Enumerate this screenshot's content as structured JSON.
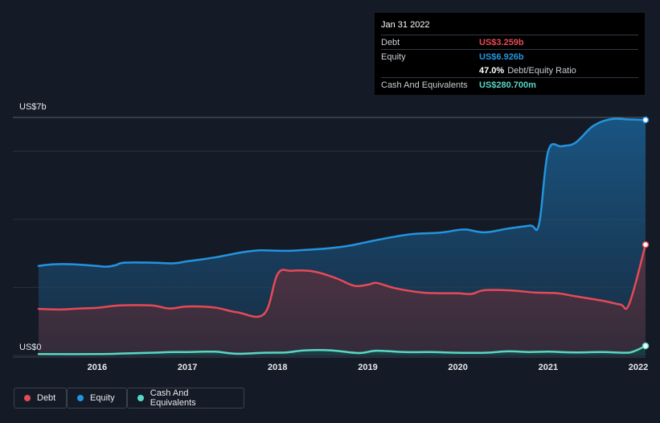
{
  "tooltip": {
    "date": "Jan 31 2022",
    "rows": [
      {
        "label": "Debt",
        "value": "US$3.259b",
        "color": "#e64a57"
      },
      {
        "label": "Equity",
        "value": "US$6.926b",
        "color": "#2394df"
      },
      {
        "label": "Cash And Equivalents",
        "value": "US$280.700m",
        "color": "#59d7c3"
      }
    ],
    "ratio_value": "47.0%",
    "ratio_label": "Debt/Equity Ratio"
  },
  "legend": [
    {
      "label": "Debt",
      "color": "#e64a57"
    },
    {
      "label": "Equity",
      "color": "#2394df"
    },
    {
      "label": "Cash And Equivalents",
      "color": "#59d7c3"
    }
  ],
  "chart_data": {
    "type": "area",
    "title": "",
    "ylabel_top": "US$7b",
    "ylabel_bottom": "US$0",
    "ylim": [
      0,
      7
    ],
    "xlim": [
      2015.35,
      2022.08
    ],
    "x_ticks": [
      2016,
      2017,
      2018,
      2019,
      2020,
      2021,
      2022
    ],
    "x_tick_labels": [
      "2016",
      "2017",
      "2018",
      "2019",
      "2020",
      "2021",
      "2022"
    ],
    "series": [
      {
        "name": "Equity",
        "color": "#2394df",
        "points": [
          [
            2015.35,
            2.63
          ],
          [
            2015.5,
            2.68
          ],
          [
            2015.75,
            2.68
          ],
          [
            2016.0,
            2.63
          ],
          [
            2016.1,
            2.61
          ],
          [
            2016.2,
            2.65
          ],
          [
            2016.3,
            2.73
          ],
          [
            2016.6,
            2.73
          ],
          [
            2016.85,
            2.71
          ],
          [
            2017.0,
            2.77
          ],
          [
            2017.3,
            2.88
          ],
          [
            2017.6,
            3.03
          ],
          [
            2017.8,
            3.09
          ],
          [
            2018.0,
            3.08
          ],
          [
            2018.15,
            3.08
          ],
          [
            2018.4,
            3.12
          ],
          [
            2018.6,
            3.16
          ],
          [
            2018.8,
            3.23
          ],
          [
            2019.0,
            3.34
          ],
          [
            2019.25,
            3.47
          ],
          [
            2019.5,
            3.57
          ],
          [
            2019.8,
            3.61
          ],
          [
            2020.0,
            3.69
          ],
          [
            2020.1,
            3.7
          ],
          [
            2020.3,
            3.62
          ],
          [
            2020.55,
            3.73
          ],
          [
            2020.8,
            3.82
          ],
          [
            2020.9,
            3.87
          ],
          [
            2021.0,
            6.0
          ],
          [
            2021.15,
            6.15
          ],
          [
            2021.3,
            6.25
          ],
          [
            2021.5,
            6.75
          ],
          [
            2021.7,
            6.95
          ],
          [
            2021.9,
            6.94
          ],
          [
            2022.08,
            6.926
          ]
        ]
      },
      {
        "name": "Debt",
        "color": "#e64a57",
        "points": [
          [
            2015.35,
            1.37
          ],
          [
            2015.6,
            1.35
          ],
          [
            2015.8,
            1.38
          ],
          [
            2016.0,
            1.4
          ],
          [
            2016.25,
            1.47
          ],
          [
            2016.6,
            1.47
          ],
          [
            2016.8,
            1.38
          ],
          [
            2017.0,
            1.44
          ],
          [
            2017.3,
            1.41
          ],
          [
            2017.55,
            1.27
          ],
          [
            2017.85,
            1.22
          ],
          [
            2018.0,
            2.39
          ],
          [
            2018.15,
            2.49
          ],
          [
            2018.4,
            2.47
          ],
          [
            2018.65,
            2.27
          ],
          [
            2018.85,
            2.05
          ],
          [
            2019.0,
            2.08
          ],
          [
            2019.1,
            2.13
          ],
          [
            2019.3,
            1.98
          ],
          [
            2019.6,
            1.85
          ],
          [
            2019.85,
            1.83
          ],
          [
            2020.0,
            1.83
          ],
          [
            2020.15,
            1.81
          ],
          [
            2020.3,
            1.92
          ],
          [
            2020.6,
            1.91
          ],
          [
            2020.85,
            1.85
          ],
          [
            2021.1,
            1.83
          ],
          [
            2021.3,
            1.74
          ],
          [
            2021.6,
            1.61
          ],
          [
            2021.8,
            1.5
          ],
          [
            2021.9,
            1.52
          ],
          [
            2022.08,
            3.259
          ]
        ]
      },
      {
        "name": "Cash And Equivalents",
        "color": "#59d7c3",
        "points": [
          [
            2015.35,
            0.04
          ],
          [
            2016.0,
            0.04
          ],
          [
            2016.3,
            0.06
          ],
          [
            2016.6,
            0.08
          ],
          [
            2016.85,
            0.1
          ],
          [
            2017.0,
            0.1
          ],
          [
            2017.3,
            0.11
          ],
          [
            2017.55,
            0.05
          ],
          [
            2017.85,
            0.08
          ],
          [
            2018.1,
            0.09
          ],
          [
            2018.3,
            0.15
          ],
          [
            2018.6,
            0.15
          ],
          [
            2018.9,
            0.07
          ],
          [
            2019.1,
            0.14
          ],
          [
            2019.4,
            0.1
          ],
          [
            2019.7,
            0.1
          ],
          [
            2020.0,
            0.08
          ],
          [
            2020.3,
            0.08
          ],
          [
            2020.55,
            0.12
          ],
          [
            2020.8,
            0.1
          ],
          [
            2021.0,
            0.11
          ],
          [
            2021.3,
            0.09
          ],
          [
            2021.6,
            0.1
          ],
          [
            2021.85,
            0.08
          ],
          [
            2021.95,
            0.12
          ],
          [
            2022.08,
            0.2807
          ]
        ]
      }
    ],
    "tooltip_date": "Jan 31 2022"
  }
}
